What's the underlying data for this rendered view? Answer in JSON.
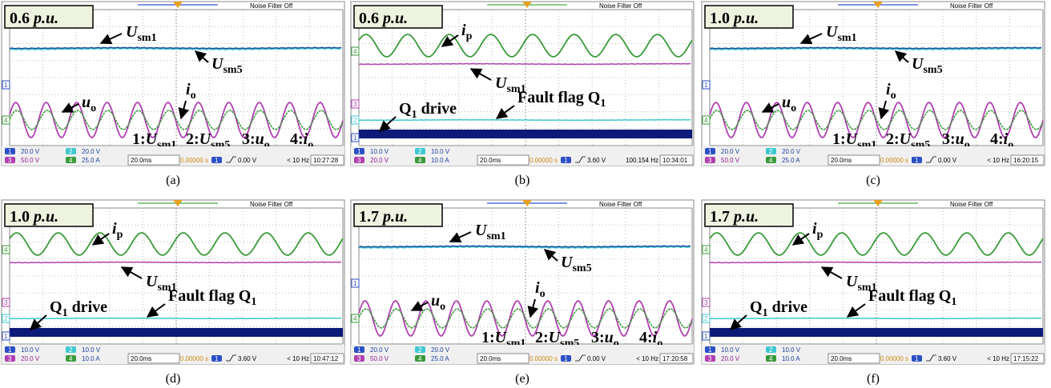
{
  "noise_filter": "Noise Filter Off",
  "panels": [
    {
      "badge": {
        "value": "0.6",
        "unit": "p.u."
      },
      "channels": [
        "1",
        "4"
      ],
      "labels": [
        {
          "main": "U",
          "sub": "sm1"
        },
        {
          "main": "U",
          "sub": "sm5"
        },
        {
          "main": "u",
          "sub": "o"
        },
        {
          "main": "i",
          "sub": "o"
        }
      ],
      "legend": [
        {
          "num": "1:",
          "main": "U",
          "sub": "sm1"
        },
        {
          "num": "2:",
          "main": "U",
          "sub": "sm5"
        },
        {
          "num": "3:",
          "main": "u",
          "sub": "o"
        },
        {
          "num": "4:",
          "main": "i",
          "sub": "o"
        }
      ],
      "status": {
        "scales": [
          {
            "ch": "1",
            "value": "20.0 V"
          },
          {
            "ch": "2",
            "value": "20.0 V"
          },
          {
            "ch": "3",
            "value": "50.0 V"
          },
          {
            "ch": "4",
            "value": "25.0 A"
          }
        ],
        "timebase": "20.0ms",
        "delay": "0.00000 s",
        "trig_ch": "1",
        "trig_level": "0.00 V",
        "freq": "< 10 Hz",
        "clock": "10:27:28"
      },
      "caption": "(a)"
    },
    {
      "badge": {
        "value": "0.6",
        "unit": "p.u."
      },
      "channels": [
        "4",
        "3",
        "2",
        "1"
      ],
      "labels": [
        {
          "main": "i",
          "sub": "p"
        },
        {
          "main": "U",
          "sub": "sm1"
        },
        {
          "main": "Q",
          "sub": "1",
          "tail": " drive"
        },
        {
          "main": "Fault flag Q",
          "sub": "1"
        }
      ],
      "status": {
        "scales": [
          {
            "ch": "1",
            "value": "10.0 V"
          },
          {
            "ch": "2",
            "value": "10.0 V"
          },
          {
            "ch": "3",
            "value": "20.0 V"
          },
          {
            "ch": "4",
            "value": "10.0 A"
          }
        ],
        "timebase": "20.0ms",
        "delay": "0.00000 s",
        "trig_ch": "1",
        "trig_level": "3.60 V",
        "freq": "100.154 Hz",
        "clock": "10:34:01"
      },
      "caption": "(b)"
    },
    {
      "badge": {
        "value": "1.0",
        "unit": "p.u."
      },
      "channels": [
        "1",
        "4"
      ],
      "labels": [
        {
          "main": "U",
          "sub": "sm1"
        },
        {
          "main": "U",
          "sub": "sm5"
        },
        {
          "main": "u",
          "sub": "o"
        },
        {
          "main": "i",
          "sub": "o"
        }
      ],
      "legend": [
        {
          "num": "1:",
          "main": "U",
          "sub": "sm1"
        },
        {
          "num": "2:",
          "main": "U",
          "sub": "sm5"
        },
        {
          "num": "3:",
          "main": "u",
          "sub": "o"
        },
        {
          "num": "4:",
          "main": "i",
          "sub": "o"
        }
      ],
      "status": {
        "scales": [
          {
            "ch": "1",
            "value": "20.0 V"
          },
          {
            "ch": "2",
            "value": "20.0 V"
          },
          {
            "ch": "3",
            "value": "50.0 V"
          },
          {
            "ch": "4",
            "value": "25.0 A"
          }
        ],
        "timebase": "20.0ms",
        "delay": "0.00000 s",
        "trig_ch": "1",
        "trig_level": "0.00 V",
        "freq": "< 10 Hz",
        "clock": "16:20:15"
      },
      "caption": "(c)"
    },
    {
      "badge": {
        "value": "1.0",
        "unit": "p.u."
      },
      "channels": [
        "4",
        "3",
        "2",
        "1"
      ],
      "labels": [
        {
          "main": "i",
          "sub": "p"
        },
        {
          "main": "U",
          "sub": "sm1"
        },
        {
          "main": "Q",
          "sub": "1",
          "tail": " drive"
        },
        {
          "main": "Fault flag Q",
          "sub": "1"
        }
      ],
      "status": {
        "scales": [
          {
            "ch": "1",
            "value": "10.0 V"
          },
          {
            "ch": "2",
            "value": "10.0 V"
          },
          {
            "ch": "3",
            "value": "20.0 V"
          },
          {
            "ch": "4",
            "value": "10.0 A"
          }
        ],
        "timebase": "20.0ms",
        "delay": "0.00000 s",
        "trig_ch": "1",
        "trig_level": "3.60 V",
        "freq": "< 10 Hz",
        "clock": "10:47:12"
      },
      "caption": "(d)"
    },
    {
      "badge": {
        "value": "1.7",
        "unit": "p.u."
      },
      "channels": [
        "1",
        "4"
      ],
      "labels": [
        {
          "main": "U",
          "sub": "sm1"
        },
        {
          "main": "U",
          "sub": "sm5"
        },
        {
          "main": "u",
          "sub": "o"
        },
        {
          "main": "i",
          "sub": "o"
        }
      ],
      "legend": [
        {
          "num": "1:",
          "main": "U",
          "sub": "sm1"
        },
        {
          "num": "2:",
          "main": "U",
          "sub": "sm5"
        },
        {
          "num": "3:",
          "main": "u",
          "sub": "o"
        },
        {
          "num": "4:",
          "main": "i",
          "sub": "o"
        }
      ],
      "status": {
        "scales": [
          {
            "ch": "1",
            "value": "20.0 V"
          },
          {
            "ch": "2",
            "value": "20.0 V"
          },
          {
            "ch": "3",
            "value": "50.0 V"
          },
          {
            "ch": "4",
            "value": "25.0 A"
          }
        ],
        "timebase": "20.0ms",
        "delay": "0.00000 s",
        "trig_ch": "1",
        "trig_level": "0.00 V",
        "freq": "< 10 Hz",
        "clock": "17:20:58"
      },
      "caption": "(e)"
    },
    {
      "badge": {
        "value": "1.7",
        "unit": "p.u."
      },
      "channels": [
        "4",
        "3",
        "2",
        "1"
      ],
      "labels": [
        {
          "main": "i",
          "sub": "p"
        },
        {
          "main": "U",
          "sub": "sm1"
        },
        {
          "main": "Q",
          "sub": "1",
          "tail": " drive"
        },
        {
          "main": "Fault flag Q",
          "sub": "1"
        }
      ],
      "status": {
        "scales": [
          {
            "ch": "1",
            "value": "10.0 V"
          },
          {
            "ch": "2",
            "value": "10.0 V"
          },
          {
            "ch": "3",
            "value": "20.0 V"
          },
          {
            "ch": "4",
            "value": "10.0 A"
          }
        ],
        "timebase": "20.0ms",
        "delay": "0.00000 s",
        "trig_ch": "1",
        "trig_level": "3.60 V",
        "freq": "< 10 Hz",
        "clock": "17:15:22"
      },
      "caption": "(f)"
    }
  ]
}
